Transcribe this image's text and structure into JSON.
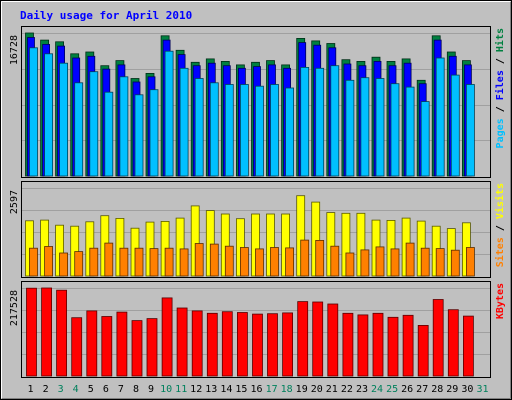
{
  "chart_data": {
    "type": "bar",
    "title": "Daily usage for April 2010",
    "x": [
      "1",
      "2",
      "3",
      "4",
      "5",
      "6",
      "7",
      "8",
      "9",
      "10",
      "11",
      "12",
      "13",
      "14",
      "15",
      "16",
      "17",
      "18",
      "19",
      "20",
      "21",
      "22",
      "23",
      "24",
      "25",
      "26",
      "27",
      "28",
      "29",
      "30",
      "31"
    ],
    "weekend_days": [
      "3",
      "4",
      "10",
      "11",
      "17",
      "18",
      "24",
      "25",
      "31"
    ],
    "panels": [
      {
        "name": "hits-files-pages",
        "ymax_label": "16728",
        "ymax": 16728,
        "right_label": [
          "Pages",
          "Files",
          "Hits"
        ],
        "series": [
          {
            "name": "Hits",
            "color": "#008040",
            "values": [
              16728,
              15900,
              15700,
              14300,
              14500,
              12900,
              13500,
              11400,
              12000,
              16400,
              14700,
              13300,
              13700,
              13400,
              13000,
              13300,
              13500,
              13000,
              16100,
              15800,
              15500,
              13600,
              13400,
              13900,
              13400,
              13700,
              11200,
              16400,
              14500,
              13500,
              null
            ]
          },
          {
            "name": "Files",
            "color": "#0000ff",
            "values": [
              16200,
              15400,
              15200,
              13800,
              14000,
              12500,
              13000,
              11000,
              11600,
              15900,
              14200,
              12900,
              13200,
              12900,
              12600,
              12800,
              13000,
              12600,
              15600,
              15300,
              15000,
              13100,
              12900,
              13400,
              12900,
              13200,
              10800,
              15900,
              14000,
              13000,
              null
            ]
          },
          {
            "name": "Pages",
            "color": "#00c0ff",
            "values": [
              15000,
              14300,
              13200,
              10900,
              12200,
              9800,
              11600,
              9500,
              10100,
              14600,
              12600,
              11400,
              10900,
              10700,
              10700,
              10500,
              10700,
              10300,
              12700,
              12600,
              12900,
              11200,
              11500,
              11400,
              10800,
              10400,
              8700,
              13800,
              11800,
              10700,
              null
            ]
          }
        ]
      },
      {
        "name": "visits-sites",
        "ymax_label": "2597",
        "ymax": 2597,
        "right_label": [
          "Sites",
          "Visits"
        ],
        "series": [
          {
            "name": "Visits",
            "color": "#ffff00",
            "values": [
              1630,
              1650,
              1500,
              1470,
              1600,
              1780,
              1700,
              1410,
              1590,
              1610,
              1710,
              2070,
              1930,
              1830,
              1690,
              1830,
              1830,
              1830,
              2370,
              2180,
              1870,
              1850,
              1850,
              1650,
              1640,
              1710,
              1620,
              1470,
              1400,
              1570,
              null
            ]
          },
          {
            "name": "Sites",
            "color": "#ff8000",
            "values": [
              820,
              870,
              680,
              720,
              820,
              970,
              820,
              820,
              810,
              820,
              800,
              960,
              940,
              880,
              840,
              800,
              840,
              830,
              1060,
              1050,
              880,
              680,
              770,
              860,
              800,
              970,
              820,
              810,
              760,
              840,
              null
            ]
          }
        ]
      },
      {
        "name": "kbytes",
        "ymax_label": "217528",
        "ymax": 217528,
        "right_label": [
          "KBytes"
        ],
        "series": [
          {
            "name": "KBytes",
            "color": "#ff0000",
            "values": [
              217000,
              217528,
              212000,
              144000,
              161000,
              147000,
              158000,
              137000,
              142000,
              193000,
              168000,
              161000,
              155000,
              159000,
              157000,
              153000,
              154000,
              156000,
              184000,
              183000,
              178000,
              155000,
              151000,
              155000,
              145000,
              150000,
              125000,
              189000,
              164000,
              148000,
              null
            ]
          }
        ]
      }
    ]
  }
}
